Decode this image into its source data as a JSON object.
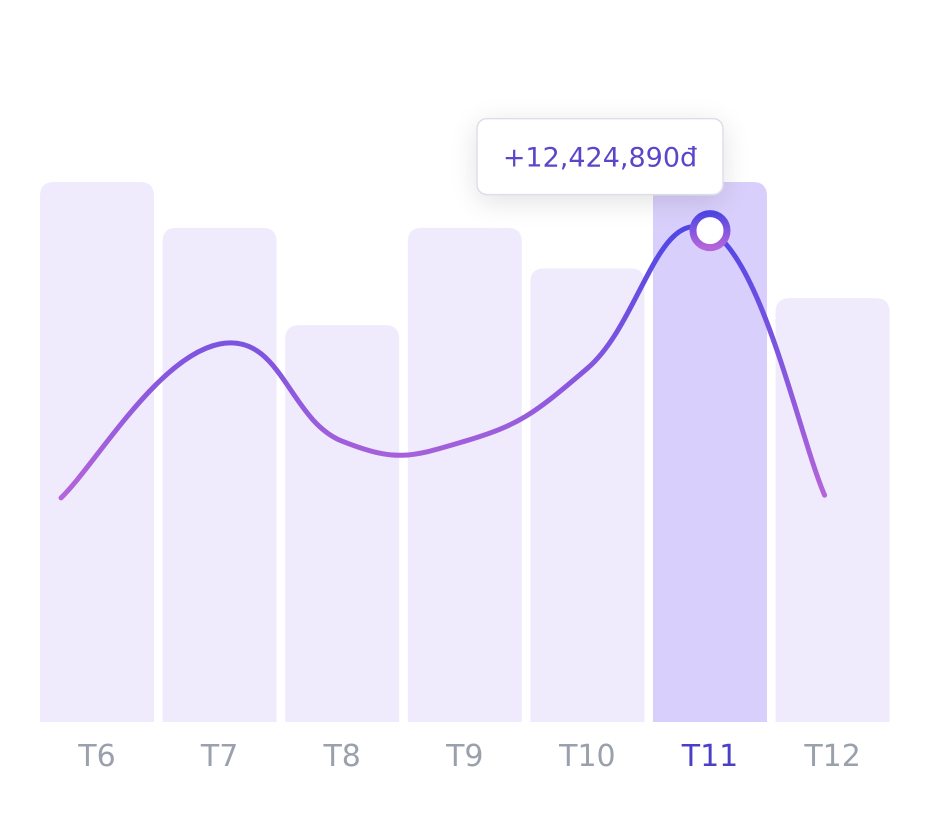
{
  "chart_data": {
    "type": "bar",
    "categories": [
      "T6",
      "T7",
      "T8",
      "T9",
      "T10",
      "T11",
      "T12"
    ],
    "values": [
      100,
      91.5,
      73.5,
      91.5,
      84,
      100,
      78.5
    ],
    "line_values": [
      41.5,
      70,
      52,
      52,
      65.5,
      91,
      42
    ],
    "ylim": [
      0,
      100
    ],
    "highlight_index": 5,
    "tooltip": "+12,424,890đ",
    "grid": false,
    "legend": "none",
    "colors": {
      "bar": "#efebfc",
      "bar_highlight": "#d9cffc",
      "line_start": "#b565d9",
      "line_end": "#4f46e5",
      "tick": "#9aa1ad",
      "tick_highlight": "#4b3fc7",
      "tooltip_text": "#5a46c8"
    }
  }
}
